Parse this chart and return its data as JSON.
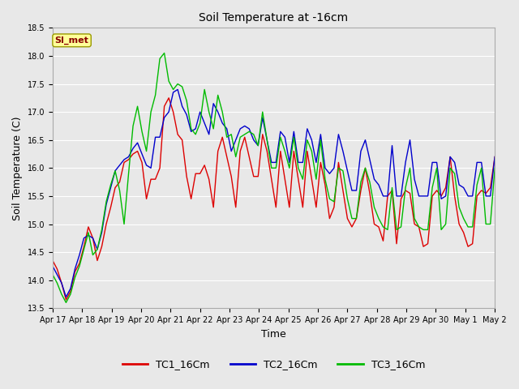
{
  "title": "Soil Temperature at -16cm",
  "xlabel": "Time",
  "ylabel": "Soil Temperature (C)",
  "ylim": [
    13.5,
    18.5
  ],
  "yticks": [
    13.5,
    14.0,
    14.5,
    15.0,
    15.5,
    16.0,
    16.5,
    17.0,
    17.5,
    18.0,
    18.5
  ],
  "fig_bg_color": "#e8e8e8",
  "plot_bg_color": "#e8e8e8",
  "grid_color": "#ffffff",
  "annotation_text": "SI_met",
  "annotation_bg": "#ffff99",
  "annotation_border": "#999900",
  "annotation_text_color": "#880000",
  "line_colors": {
    "TC1_16Cm": "#dd0000",
    "TC2_16Cm": "#0000cc",
    "TC3_16Cm": "#00bb00"
  },
  "xtick_labels": [
    "Apr 17",
    "Apr 18",
    "Apr 19",
    "Apr 20",
    "Apr 21",
    "Apr 22",
    "Apr 23",
    "Apr 24",
    "Apr 25",
    "Apr 26",
    "Apr 27",
    "Apr 28",
    "Apr 29",
    "Apr 30",
    "May 1",
    "May 2"
  ],
  "TC1_16Cm": [
    14.35,
    14.2,
    13.95,
    13.65,
    13.8,
    14.15,
    14.3,
    14.6,
    14.95,
    14.75,
    14.35,
    14.6,
    15.0,
    15.3,
    15.65,
    15.75,
    16.1,
    16.15,
    16.25,
    16.3,
    16.1,
    15.45,
    15.8,
    15.8,
    16.0,
    17.1,
    17.25,
    17.0,
    16.6,
    16.5,
    15.85,
    15.45,
    15.9,
    15.9,
    16.05,
    15.8,
    15.3,
    16.3,
    16.55,
    16.2,
    15.85,
    15.3,
    16.3,
    16.55,
    16.2,
    15.85,
    15.85,
    16.6,
    16.3,
    15.8,
    15.3,
    16.3,
    15.8,
    15.3,
    16.3,
    15.8,
    15.3,
    16.3,
    15.8,
    15.3,
    16.1,
    15.7,
    15.1,
    15.3,
    16.1,
    15.6,
    15.1,
    14.95,
    15.1,
    15.6,
    16.0,
    15.55,
    15.0,
    14.95,
    14.7,
    15.5,
    15.6,
    14.65,
    15.45,
    15.6,
    15.55,
    15.0,
    14.95,
    14.6,
    14.65,
    15.5,
    15.6,
    15.5,
    15.65,
    16.2,
    15.5,
    15.0,
    14.85,
    14.6,
    14.65,
    15.5,
    15.6,
    15.55,
    15.65,
    16.2
  ],
  "TC2_16Cm": [
    14.25,
    14.1,
    13.95,
    13.7,
    13.85,
    14.2,
    14.45,
    14.75,
    14.8,
    14.75,
    14.55,
    14.85,
    15.35,
    15.65,
    15.95,
    16.05,
    16.15,
    16.2,
    16.35,
    16.45,
    16.25,
    16.05,
    16.0,
    16.55,
    16.55,
    16.9,
    17.0,
    17.35,
    17.4,
    17.1,
    16.95,
    16.65,
    16.7,
    17.0,
    16.8,
    16.6,
    17.15,
    17.0,
    16.8,
    16.7,
    16.3,
    16.5,
    16.7,
    16.75,
    16.7,
    16.5,
    16.4,
    16.9,
    16.5,
    16.1,
    16.1,
    16.65,
    16.55,
    16.1,
    16.65,
    16.1,
    16.1,
    16.7,
    16.5,
    16.1,
    16.6,
    16.0,
    15.9,
    16.0,
    16.6,
    16.3,
    15.95,
    15.6,
    15.6,
    16.3,
    16.5,
    16.15,
    15.8,
    15.7,
    15.5,
    15.5,
    16.4,
    15.5,
    15.5,
    16.1,
    16.5,
    15.8,
    15.5,
    15.5,
    15.5,
    16.1,
    16.1,
    15.45,
    15.5,
    16.2,
    16.1,
    15.7,
    15.65,
    15.5,
    15.5,
    16.1,
    16.1,
    15.5,
    15.5,
    16.2
  ],
  "TC3_16Cm": [
    14.1,
    13.95,
    13.75,
    13.6,
    13.75,
    14.05,
    14.25,
    14.55,
    14.85,
    14.45,
    14.55,
    14.9,
    15.4,
    15.7,
    15.95,
    15.6,
    15.0,
    15.9,
    16.75,
    17.1,
    16.65,
    16.3,
    17.0,
    17.3,
    17.95,
    18.05,
    17.55,
    17.4,
    17.5,
    17.45,
    17.2,
    16.7,
    16.6,
    16.8,
    17.4,
    17.0,
    16.7,
    17.3,
    17.0,
    16.55,
    16.6,
    16.2,
    16.55,
    16.6,
    16.65,
    16.6,
    16.4,
    17.0,
    16.5,
    16.0,
    16.0,
    16.55,
    16.3,
    16.0,
    16.55,
    16.0,
    15.8,
    16.5,
    16.3,
    15.8,
    16.5,
    15.8,
    15.45,
    15.4,
    16.0,
    15.95,
    15.45,
    15.1,
    15.1,
    15.75,
    16.0,
    15.75,
    15.3,
    15.1,
    14.95,
    14.9,
    15.65,
    14.9,
    14.95,
    15.65,
    16.0,
    15.1,
    14.95,
    14.9,
    14.9,
    15.65,
    16.0,
    14.9,
    15.0,
    16.0,
    15.9,
    15.3,
    15.1,
    14.95,
    14.95,
    15.7,
    16.0,
    15.0,
    15.0,
    16.0
  ]
}
